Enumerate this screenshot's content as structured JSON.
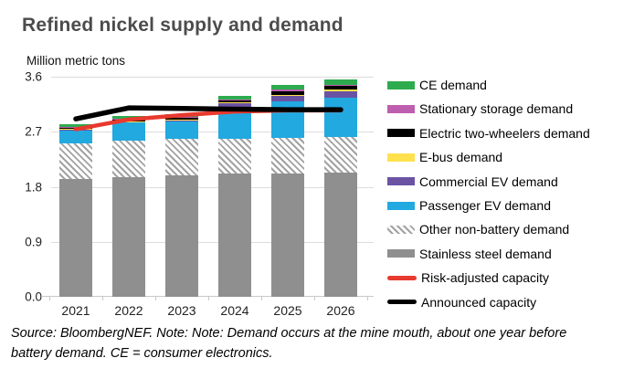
{
  "header": {
    "title": "Refined nickel supply and demand"
  },
  "chart_data": {
    "type": "bar",
    "stacked": true,
    "title": "Refined nickel supply and demand",
    "xlabel": "",
    "ylabel": "Million metric tons",
    "ylim": [
      0,
      3.6
    ],
    "yticks": [
      "3.6",
      "2.7",
      "1.8",
      "0.9",
      "0.0"
    ],
    "grid": "horizontal",
    "legend_position": "right",
    "categories": [
      "2021",
      "2022",
      "2023",
      "2024",
      "2025",
      "2026"
    ],
    "series": [
      {
        "name": "Stainless steel demand",
        "color": "#8f8f8f",
        "pattern": "solid",
        "values": [
          1.93,
          1.96,
          1.99,
          2.01,
          2.02,
          2.03
        ]
      },
      {
        "name": "Other non-battery demand",
        "color": "#a2a2a2",
        "pattern": "hatch",
        "values": [
          0.58,
          0.6,
          0.6,
          0.58,
          0.58,
          0.58
        ]
      },
      {
        "name": "Passenger EV demand",
        "color": "#22a9e0",
        "pattern": "solid",
        "values": [
          0.22,
          0.29,
          0.28,
          0.51,
          0.6,
          0.65
        ]
      },
      {
        "name": "Commercial EV demand",
        "color": "#6b53a4",
        "pattern": "solid",
        "values": [
          0.01,
          0.02,
          0.02,
          0.06,
          0.09,
          0.1
        ]
      },
      {
        "name": "E-bus demand",
        "color": "#ffe14e",
        "pattern": "solid",
        "values": [
          0.005,
          0.005,
          0.01,
          0.02,
          0.01,
          0.03
        ]
      },
      {
        "name": "Electric two-wheelers demand",
        "color": "#000000",
        "pattern": "solid",
        "values": [
          0.025,
          0.03,
          0.03,
          0.04,
          0.06,
          0.06
        ]
      },
      {
        "name": "Stationary storage demand",
        "color": "#be5eae",
        "pattern": "solid",
        "values": [
          0.005,
          0.01,
          0.01,
          0.01,
          0.03,
          0.02
        ]
      },
      {
        "name": "CE demand",
        "color": "#2eab4f",
        "pattern": "solid",
        "values": [
          0.045,
          0.05,
          0.05,
          0.06,
          0.075,
          0.08
        ]
      }
    ],
    "lines": [
      {
        "name": "Risk-adjusted capacity",
        "color": "#e8392e",
        "values": [
          2.74,
          2.9,
          2.97,
          3.03,
          3.05,
          3.05
        ]
      },
      {
        "name": "Announced capacity",
        "color": "#000000",
        "values": [
          2.91,
          3.09,
          3.08,
          3.07,
          3.06,
          3.06
        ]
      }
    ]
  },
  "legend": {
    "items": [
      {
        "label": "CE demand",
        "swatch": "bar",
        "color": "#2eab4f"
      },
      {
        "label": "Stationary storage demand",
        "swatch": "bar",
        "color": "#be5eae"
      },
      {
        "label": "Electric two-wheelers demand",
        "swatch": "bar",
        "color": "#000000"
      },
      {
        "label": "E-bus demand",
        "swatch": "bar",
        "color": "#ffe14e"
      },
      {
        "label": "Commercial EV demand",
        "swatch": "bar",
        "color": "#6b53a4"
      },
      {
        "label": "Passenger EV demand",
        "swatch": "bar",
        "color": "#22a9e0"
      },
      {
        "label": "Other non-battery demand",
        "swatch": "hatch",
        "color": "#a2a2a2"
      },
      {
        "label": "Stainless steel demand",
        "swatch": "bar",
        "color": "#8f8f8f"
      },
      {
        "label": "Risk-adjusted capacity",
        "swatch": "line",
        "color": "#e8392e"
      },
      {
        "label": "Announced capacity",
        "swatch": "line",
        "color": "#000000"
      }
    ]
  },
  "footer": {
    "line1": "Source: BloombergNEF. Note: Note: Demand occurs at the mine mouth, about one year before",
    "line2": "battery demand. CE = consumer electronics."
  }
}
